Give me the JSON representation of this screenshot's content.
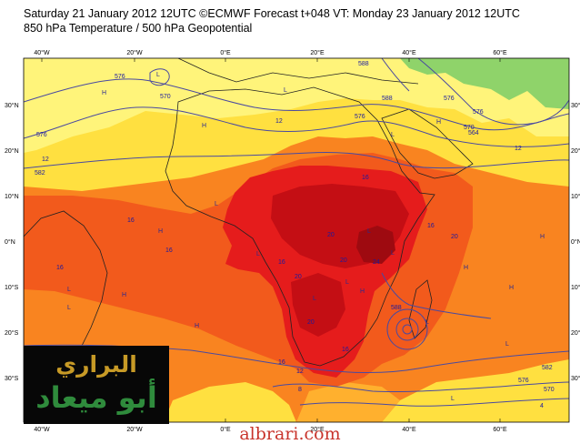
{
  "header": {
    "line1": "Saturday 21 January 2012 12UTC ©ECMWF Forecast t+048 VT: Monday 23 January 2012 12UTC",
    "line2": "850 hPa Temperature / 500 hPa Geopotential"
  },
  "map": {
    "colors": {
      "pale_yellow": "#fff47a",
      "yellow": "#ffe040",
      "orange_light": "#ffb02e",
      "orange": "#f98420",
      "red_orange": "#f25a1c",
      "red": "#e51c1c",
      "dark_red": "#c40e14",
      "deep_red": "#9e0a10",
      "green": "#8fd36a",
      "contour": "#4a4aa0"
    },
    "lon_ticks_top": [
      "40°W",
      "20°W",
      "0°E",
      "20°E",
      "40°E",
      "60°E"
    ],
    "lon_ticks_bottom": [
      "40°W",
      "20°W",
      "0°E",
      "20°E",
      "40°E",
      "60°E"
    ],
    "lat_ticks_left": [
      "30°N",
      "20°N",
      "10°N",
      "0°N",
      "10°S",
      "20°S",
      "30°S"
    ],
    "lat_ticks_right": [
      "30°N",
      "20°N",
      "10°N",
      "0°N",
      "10°S",
      "20°S",
      "30°S"
    ],
    "contour_labels": [
      "576",
      "570",
      "576",
      "582",
      "576",
      "588",
      "588",
      "576",
      "576",
      "570",
      "564",
      "588",
      "582",
      "576",
      "570",
      "12",
      "12",
      "12",
      "16",
      "16",
      "16",
      "16",
      "16",
      "16",
      "16",
      "20",
      "20",
      "20",
      "24",
      "20",
      "16",
      "20",
      "12",
      "8",
      "4"
    ],
    "pressure_labels": [
      "L",
      "H",
      "L",
      "H",
      "H",
      "L",
      "L",
      "H",
      "L",
      "L",
      "L",
      "H",
      "H",
      "H",
      "L",
      "L",
      "H",
      "L",
      "H",
      "L",
      "L",
      "H",
      "L",
      "L"
    ]
  },
  "logo": {
    "line1": "البراري",
    "line2": "أبو ميعاد"
  },
  "watermark": "albrari.com"
}
